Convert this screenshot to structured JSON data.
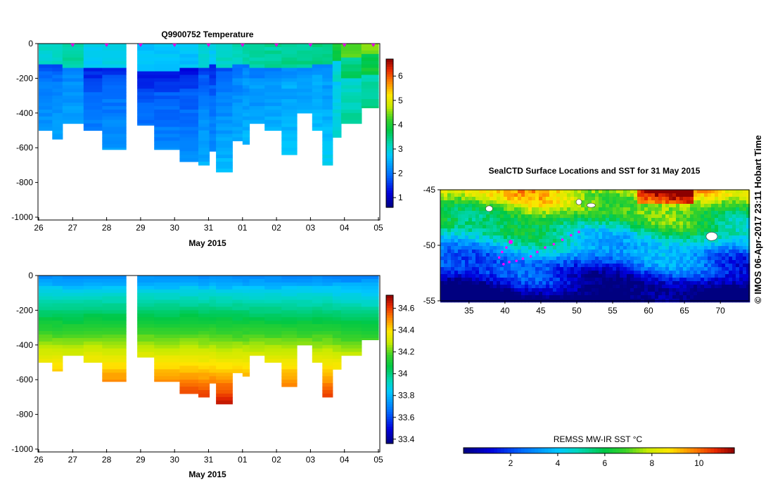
{
  "credit": "© IMOS 06-Apr-2017 23:11 Hobart Time",
  "chart_data": [
    {
      "type": "heatmap",
      "id": "temperature",
      "title": "Q9900752  Temperature",
      "xlabel": "May 2015",
      "xticks": [
        "26",
        "27",
        "28",
        "29",
        "30",
        "31",
        "01",
        "02",
        "03",
        "04",
        "05"
      ],
      "ylim": [
        -1000,
        0
      ],
      "yticks": [
        "0",
        "-200",
        "-400",
        "-600",
        "-800",
        "-1000"
      ],
      "colorbar": {
        "min": 0.6,
        "max": 6.7,
        "ticks": [
          "1",
          "2",
          "3",
          "4",
          "5",
          "6"
        ],
        "tick_values": [
          1,
          2,
          3,
          4,
          5,
          6
        ]
      },
      "profile_marker_days": [
        1,
        2,
        3,
        4,
        5,
        6,
        7,
        8,
        9,
        9.85
      ]
    },
    {
      "type": "heatmap",
      "id": "salinity",
      "title": "",
      "xlabel": "May 2015",
      "xticks": [
        "26",
        "27",
        "28",
        "29",
        "30",
        "31",
        "01",
        "02",
        "03",
        "04",
        "05"
      ],
      "ylim": [
        -1000,
        0
      ],
      "yticks": [
        "0",
        "-200",
        "-400",
        "-600",
        "-800",
        "-1000"
      ],
      "colorbar": {
        "min": 33.36,
        "max": 34.72,
        "ticks": [
          "33.4",
          "33.6",
          "33.8",
          "34",
          "34.2",
          "34.4",
          "34.6"
        ],
        "tick_values": [
          33.4,
          33.6,
          33.8,
          34,
          34.2,
          34.4,
          34.6
        ]
      }
    },
    {
      "type": "heatmap",
      "id": "sst_map",
      "title": "SealCTD Surface Locations and SST for 31 May 2015",
      "x_range": [
        31,
        74
      ],
      "y_range": [
        -55,
        -45
      ],
      "xticks": [
        "35",
        "40",
        "45",
        "50",
        "55",
        "60",
        "65",
        "70"
      ],
      "xtick_values": [
        35,
        40,
        45,
        50,
        55,
        60,
        65,
        70
      ],
      "yticks": [
        "-45",
        "-50",
        "-55"
      ],
      "ytick_values": [
        -45,
        -50,
        -55
      ],
      "track": [
        [
          40.8,
          -49.7
        ],
        [
          40.2,
          -50.2
        ],
        [
          39.6,
          -50.6
        ],
        [
          39.2,
          -51.1
        ],
        [
          39.8,
          -51.7
        ],
        [
          40.6,
          -51.5
        ],
        [
          41.6,
          -51.4
        ],
        [
          42.5,
          -51.2
        ],
        [
          43.6,
          -51.0
        ],
        [
          44.5,
          -50.6
        ],
        [
          45.6,
          -50.2
        ],
        [
          46.8,
          -49.9
        ],
        [
          48.0,
          -49.5
        ],
        [
          49.2,
          -49.1
        ],
        [
          50.3,
          -48.8
        ]
      ],
      "colorbar": {
        "label": "REMSS MW-IR SST °C",
        "min": 0,
        "max": 11.5,
        "ticks": [
          "2",
          "4",
          "6",
          "8",
          "10"
        ],
        "tick_values": [
          2,
          4,
          6,
          8,
          10
        ]
      }
    }
  ],
  "sections": [
    {
      "x": 0.0,
      "w": 0.4,
      "depth": 500,
      "mld": 120,
      "warm": 0.28
    },
    {
      "x": 0.4,
      "w": 0.3,
      "depth": 550,
      "mld": 130,
      "warm": 0.3
    },
    {
      "x": 0.7,
      "w": 0.62,
      "depth": 460,
      "mld": 150,
      "warm": 0.4
    },
    {
      "x": 1.32,
      "w": 0.55,
      "depth": 500,
      "mld": 150,
      "warm": 0.15
    },
    {
      "x": 1.87,
      "w": 0.7,
      "depth": 610,
      "mld": 140,
      "warm": 0.2
    },
    {
      "x": 2.9,
      "w": 0.5,
      "depth": 470,
      "mld": 160,
      "warm": 0.1
    },
    {
      "x": 3.4,
      "w": 0.75,
      "depth": 610,
      "mld": 160,
      "warm": 0.12
    },
    {
      "x": 4.15,
      "w": 0.55,
      "depth": 680,
      "mld": 140,
      "warm": 0.1
    },
    {
      "x": 4.7,
      "w": 0.32,
      "depth": 700,
      "mld": 150,
      "warm": 0.25
    },
    {
      "x": 5.02,
      "w": 0.2,
      "depth": 620,
      "mld": 130,
      "warm": 0.15
    },
    {
      "x": 5.22,
      "w": 0.48,
      "depth": 740,
      "mld": 150,
      "warm": 0.3
    },
    {
      "x": 5.7,
      "w": 0.3,
      "depth": 560,
      "mld": 130,
      "warm": 0.35
    },
    {
      "x": 6.0,
      "w": 0.2,
      "depth": 580,
      "mld": 130,
      "warm": 0.4
    },
    {
      "x": 6.2,
      "w": 0.45,
      "depth": 460,
      "mld": 140,
      "warm": 0.38
    },
    {
      "x": 6.65,
      "w": 0.5,
      "depth": 500,
      "mld": 150,
      "warm": 0.42
    },
    {
      "x": 7.15,
      "w": 0.45,
      "depth": 640,
      "mld": 140,
      "warm": 0.45
    },
    {
      "x": 7.6,
      "w": 0.45,
      "depth": 400,
      "mld": 140,
      "warm": 0.45
    },
    {
      "x": 8.05,
      "w": 0.3,
      "depth": 500,
      "mld": 130,
      "warm": 0.48
    },
    {
      "x": 8.35,
      "w": 0.3,
      "depth": 700,
      "mld": 130,
      "warm": 0.45
    },
    {
      "x": 8.65,
      "w": 0.25,
      "depth": 540,
      "mld": 100,
      "warm": 0.7
    },
    {
      "x": 8.9,
      "w": 0.6,
      "depth": 460,
      "mld": 80,
      "warm": 0.9
    },
    {
      "x": 9.5,
      "w": 0.5,
      "depth": 370,
      "mld": 60,
      "warm": 1.0
    }
  ]
}
